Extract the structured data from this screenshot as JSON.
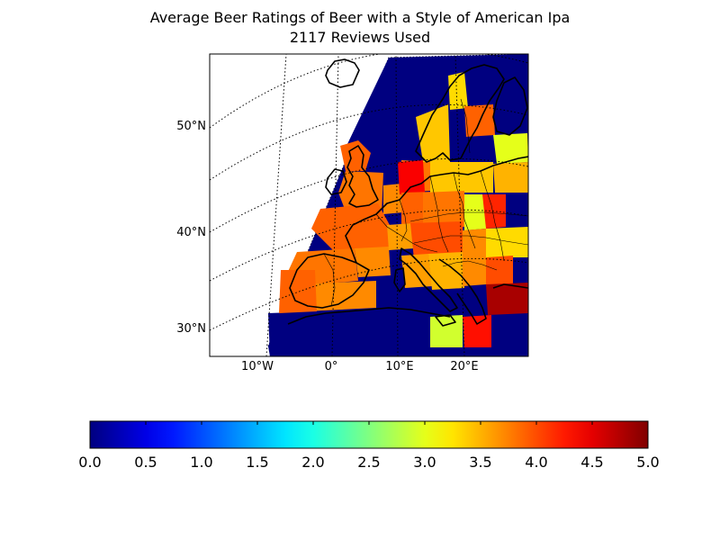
{
  "title": {
    "line1": "Average Beer Ratings of Beer with a Style of American Ipa",
    "line2": "2117 Reviews Used"
  },
  "map": {
    "projection": "conic",
    "meridians": [
      {
        "value": -10,
        "label": "10°W"
      },
      {
        "value": 0,
        "label": "0°"
      },
      {
        "value": 10,
        "label": "10°E"
      },
      {
        "value": 20,
        "label": "20°E"
      }
    ],
    "parallels": [
      {
        "value": 50,
        "label": "50°N"
      },
      {
        "value": 40,
        "label": "40°N"
      },
      {
        "value": 30,
        "label": "30°N"
      }
    ],
    "grid_line_style": "dotted",
    "coastlines": true,
    "country_borders": true
  },
  "colorbar": {
    "colormap": "jet",
    "min": 0.0,
    "max": 5.0,
    "orientation": "horizontal",
    "ticks": [
      "0.0",
      "0.5",
      "1.0",
      "1.5",
      "2.0",
      "2.5",
      "3.0",
      "3.5",
      "4.0",
      "4.5",
      "5.0"
    ],
    "stops": [
      "#00007f",
      "#0000ff",
      "#007fff",
      "#00ffff",
      "#7fff7f",
      "#ffff00",
      "#ff7f00",
      "#ff0000",
      "#7f0000"
    ]
  },
  "chart_data": {
    "type": "heatmap",
    "value_range": [
      0.0,
      5.0
    ],
    "cells": [
      {
        "region": "Atlantic / Ireland",
        "value": 0.0
      },
      {
        "region": "Scotland",
        "value": 3.9
      },
      {
        "region": "England",
        "value": 3.8
      },
      {
        "region": "Belgium / Netherlands",
        "value": 3.7
      },
      {
        "region": "North Sea",
        "value": 0.0
      },
      {
        "region": "Denmark",
        "value": 3.8
      },
      {
        "region": "Southern Norway",
        "value": 3.4
      },
      {
        "region": "Southern Sweden",
        "value": 3.3
      },
      {
        "region": "Central Sweden",
        "value": 3.9
      },
      {
        "region": "Finland south",
        "value": 3.0
      },
      {
        "region": "Northern Germany",
        "value": 4.4
      },
      {
        "region": "Germany",
        "value": 3.9
      },
      {
        "region": "Poland",
        "value": 3.4
      },
      {
        "region": "Baltic states",
        "value": 3.5
      },
      {
        "region": "Czech Republic",
        "value": 3.8
      },
      {
        "region": "Slovakia / Hungary",
        "value": 3.0
      },
      {
        "region": "Ukraine west",
        "value": 4.2
      },
      {
        "region": "France north",
        "value": 3.9
      },
      {
        "region": "France south",
        "value": 3.7
      },
      {
        "region": "Spain north",
        "value": 3.8
      },
      {
        "region": "Spain south",
        "value": 3.7
      },
      {
        "region": "Portugal",
        "value": 3.9
      },
      {
        "region": "Switzerland",
        "value": 3.6
      },
      {
        "region": "Northern Italy",
        "value": 4.0
      },
      {
        "region": "Central Italy",
        "value": 3.6
      },
      {
        "region": "Southern Italy",
        "value": 3.5
      },
      {
        "region": "Balkans",
        "value": 3.7
      },
      {
        "region": "Romania",
        "value": 3.3
      },
      {
        "region": "Bulgaria",
        "value": 4.0
      },
      {
        "region": "Turkey west",
        "value": 4.8
      },
      {
        "region": "Greece north",
        "value": 0.0
      },
      {
        "region": "Greece south",
        "value": 4.3
      },
      {
        "region": "Sicily",
        "value": 2.9
      },
      {
        "region": "Mediterranean / North Africa",
        "value": 0.0
      }
    ]
  }
}
